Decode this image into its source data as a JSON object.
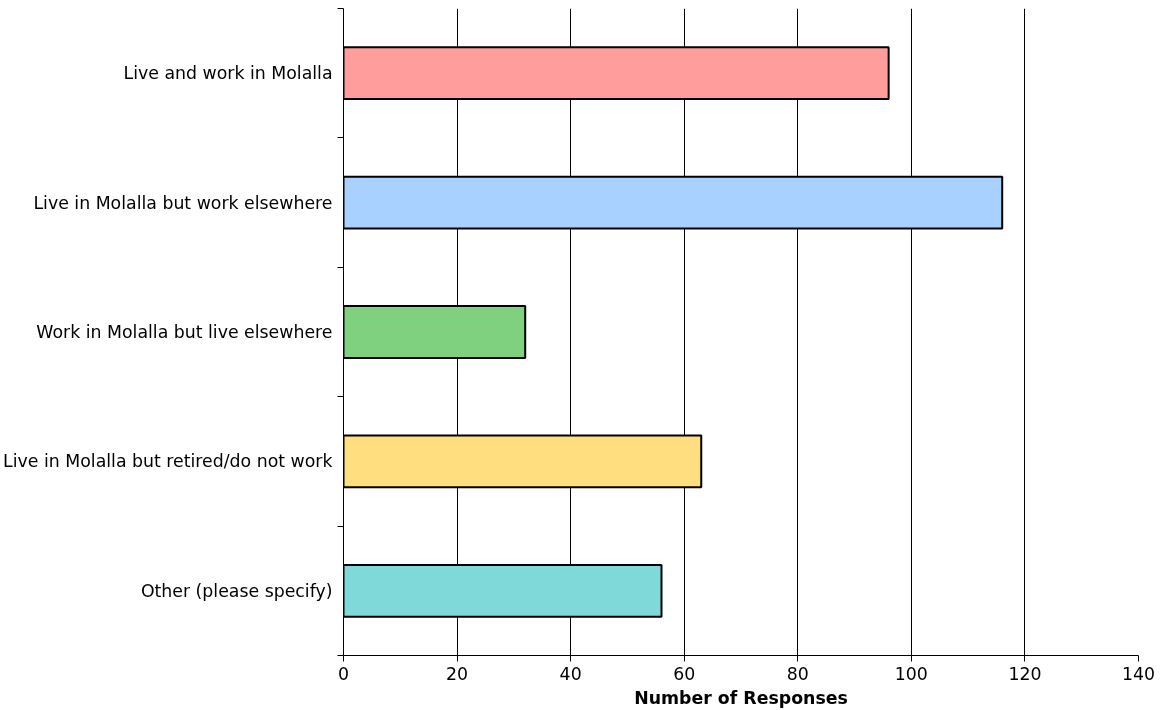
{
  "chart_data": {
    "type": "bar",
    "orientation": "horizontal",
    "xlabel": "Number of Responses",
    "categories": [
      "Live and work in Molalla",
      "Live in Molalla but work elsewhere",
      "Work in Molalla but live elsewhere",
      "Live in Molalla but retired/do not work",
      "Other (please specify)"
    ],
    "values": [
      96,
      116,
      32,
      63,
      56
    ],
    "colors": [
      "#ff9c9c",
      "#a9d1ff",
      "#7fd07f",
      "#ffde80",
      "#7fd9d9"
    ],
    "xlim": [
      0,
      140
    ],
    "xticks": [
      0,
      20,
      40,
      60,
      80,
      100,
      120,
      140
    ],
    "grid": "x"
  }
}
